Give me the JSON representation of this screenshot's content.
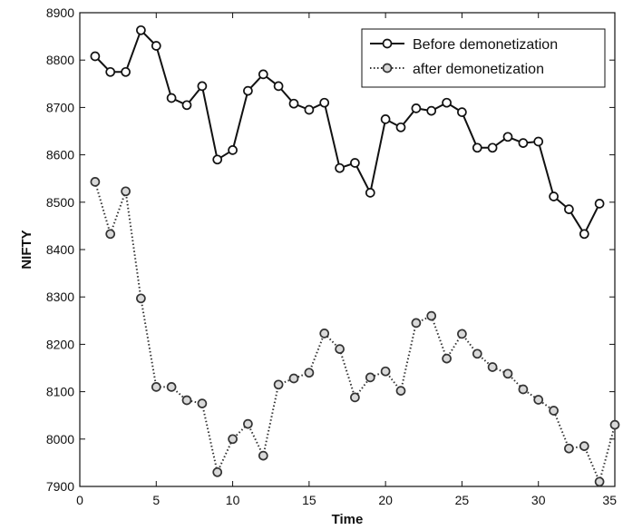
{
  "chart_data": {
    "type": "line",
    "title": "",
    "xlabel": "Time",
    "ylabel": "NIFTY",
    "xlim": [
      0,
      35
    ],
    "ylim": [
      7900,
      8900
    ],
    "xticks": [
      0,
      5,
      10,
      15,
      20,
      25,
      30,
      35
    ],
    "yticks": [
      7900,
      8000,
      8100,
      8200,
      8300,
      8400,
      8500,
      8600,
      8700,
      8800,
      8900
    ],
    "grid": false,
    "legend_position": "top-right",
    "series": [
      {
        "name": "Before demonetization",
        "line_style": "solid",
        "marker": "circle",
        "color": "#111111",
        "x": [
          1,
          2,
          3,
          4,
          5,
          6,
          7,
          8,
          9,
          10,
          11,
          12,
          13,
          14,
          15,
          16,
          17,
          18,
          19,
          20,
          21,
          22,
          23,
          24,
          25,
          26,
          27,
          28,
          29,
          30,
          31,
          32,
          33,
          34
        ],
        "values": [
          8808,
          8775,
          8775,
          8863,
          8830,
          8720,
          8705,
          8745,
          8590,
          8610,
          8735,
          8770,
          8745,
          8708,
          8695,
          8710,
          8572,
          8583,
          8520,
          8675,
          8658,
          8698,
          8693,
          8710,
          8690,
          8615,
          8615,
          8638,
          8625,
          8628,
          8512,
          8485,
          8433,
          8497
        ]
      },
      {
        "name": "after demonetization",
        "line_style": "dotted",
        "marker": "circle",
        "color": "#333333",
        "x": [
          1,
          2,
          3,
          4,
          5,
          6,
          7,
          8,
          9,
          10,
          11,
          12,
          13,
          14,
          15,
          16,
          17,
          18,
          19,
          20,
          21,
          22,
          23,
          24,
          25,
          26,
          27,
          28,
          29,
          30,
          31,
          32,
          33,
          34,
          35
        ],
        "values": [
          8543,
          8433,
          8523,
          8297,
          8110,
          8110,
          8082,
          8075,
          7930,
          8000,
          8032,
          7965,
          8115,
          8128,
          8140,
          8223,
          8190,
          8088,
          8130,
          8143,
          8102,
          8245,
          8260,
          8170,
          8222,
          8180,
          8152,
          8138,
          8105,
          8083,
          8060,
          7980,
          7985,
          7910,
          8030
        ]
      }
    ]
  }
}
